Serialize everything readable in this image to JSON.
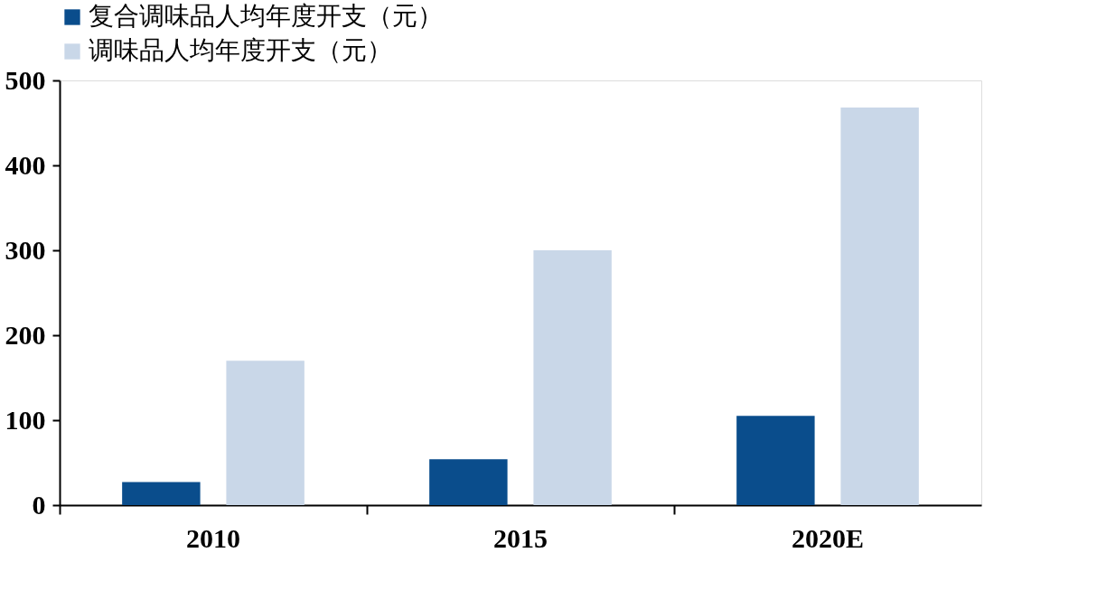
{
  "chart_data": {
    "type": "bar",
    "categories": [
      "2010",
      "2015",
      "2020E"
    ],
    "series": [
      {
        "name": "复合调味品人均年度开支（元）",
        "color": "#0a4d8c",
        "values": [
          27,
          54,
          105
        ]
      },
      {
        "name": "调味品人均年度开支（元）",
        "color": "#c9d7e8",
        "values": [
          170,
          300,
          468
        ]
      }
    ],
    "ylim": [
      0,
      500
    ],
    "yticks": [
      0,
      100,
      200,
      300,
      400,
      500
    ],
    "grid": false,
    "legend": "top"
  }
}
